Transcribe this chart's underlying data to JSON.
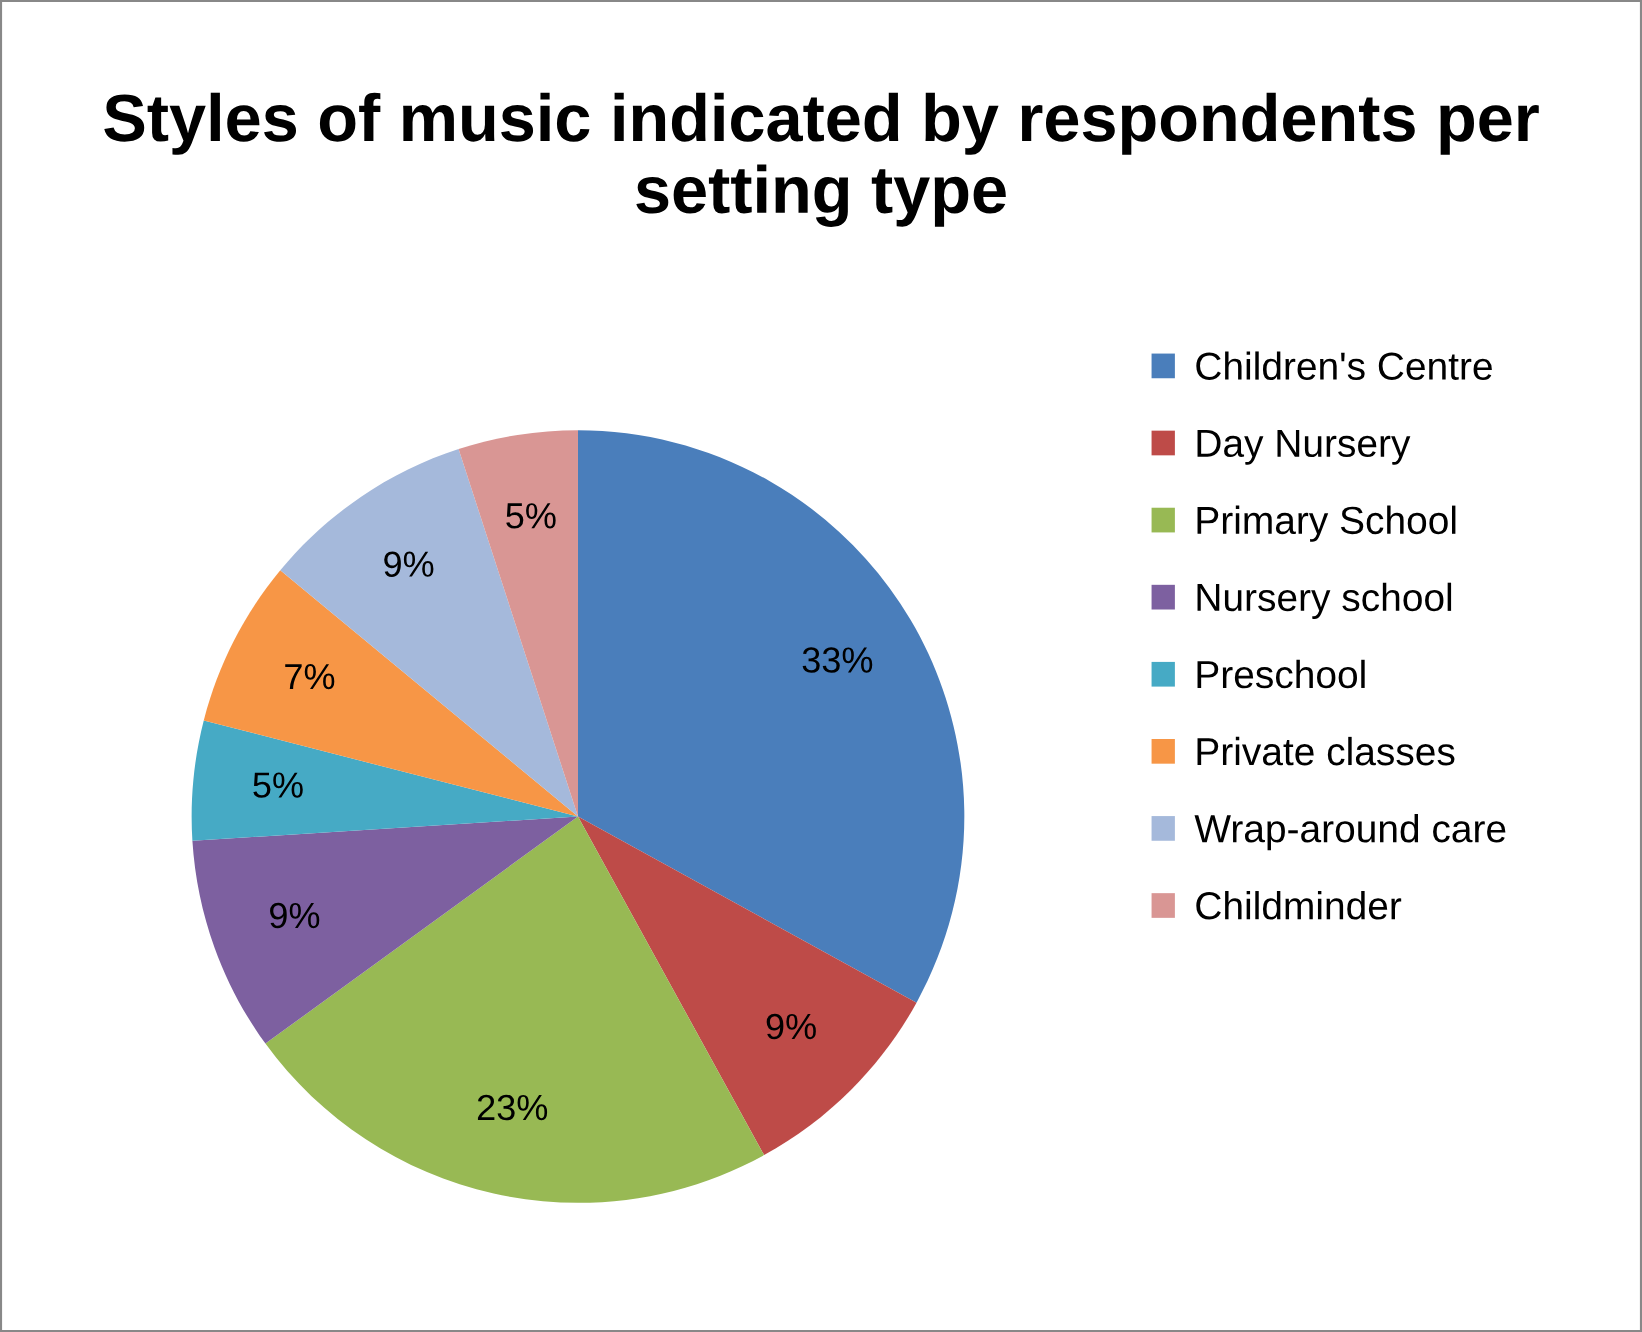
{
  "chart_data": {
    "type": "pie",
    "title": "Styles of music indicated by respondents per setting type",
    "categories": [
      "Children's Centre",
      "Day Nursery",
      "Primary School",
      "Nursery school",
      "Preschool",
      "Private classes",
      "Wrap-around care",
      "Childminder"
    ],
    "values": [
      33,
      9,
      23,
      9,
      5,
      7,
      9,
      5
    ],
    "colors": [
      "#4a7ebb",
      "#be4b48",
      "#98b954",
      "#7d60a0",
      "#46aac5",
      "#f79646",
      "#a5b9db",
      "#d99694"
    ],
    "value_labels": [
      "33%",
      "9%",
      "23%",
      "9%",
      "5%",
      "7%",
      "9%",
      "5%"
    ],
    "legend": "right"
  }
}
